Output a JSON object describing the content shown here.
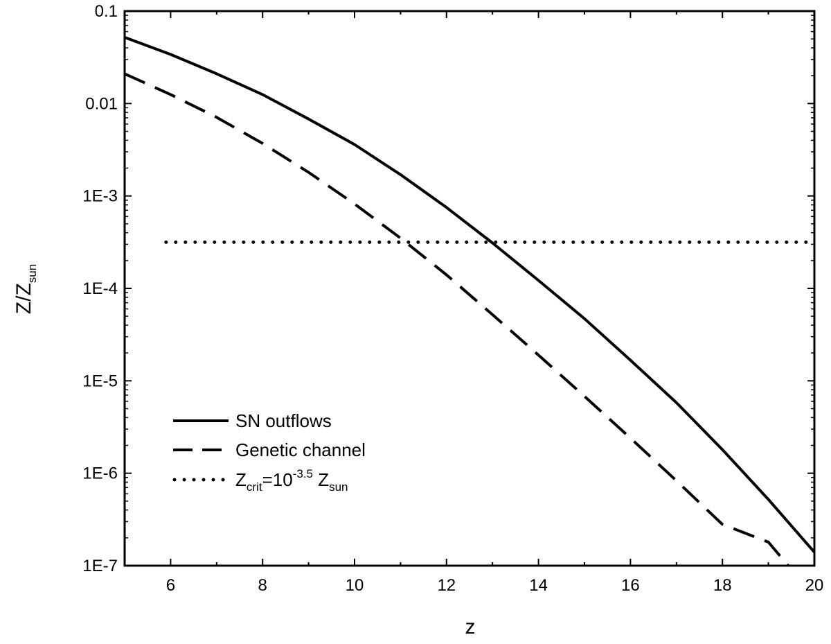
{
  "chart_data": {
    "type": "line",
    "xlabel": "z",
    "ylabel": {
      "main": "Z/Z",
      "sub": "sun"
    },
    "xlim": [
      5,
      20
    ],
    "ylim": [
      1e-07,
      0.1
    ],
    "yscale": "log",
    "grid": false,
    "legend_position": "bottom-left",
    "x_ticks": [
      {
        "value": 6,
        "label": "6"
      },
      {
        "value": 8,
        "label": "8"
      },
      {
        "value": 10,
        "label": "10"
      },
      {
        "value": 12,
        "label": "12"
      },
      {
        "value": 14,
        "label": "14"
      },
      {
        "value": 16,
        "label": "16"
      },
      {
        "value": 18,
        "label": "18"
      },
      {
        "value": 20,
        "label": "20"
      }
    ],
    "y_ticks": [
      {
        "value": 0.1,
        "label": "0.1"
      },
      {
        "value": 0.01,
        "label": "0.01"
      },
      {
        "value": 0.001,
        "label": "1E-3"
      },
      {
        "value": 0.0001,
        "label": "1E-4"
      },
      {
        "value": 1e-05,
        "label": "1E-5"
      },
      {
        "value": 1e-06,
        "label": "1E-6"
      },
      {
        "value": 1e-07,
        "label": "1E-7"
      }
    ],
    "series": [
      {
        "name": "SN outflows",
        "style": "solid",
        "x": [
          5,
          6,
          7,
          8,
          9,
          10,
          11,
          12,
          13,
          14,
          15,
          16,
          17,
          18,
          19,
          20
        ],
        "y": [
          0.052,
          0.034,
          0.021,
          0.0125,
          0.0068,
          0.0036,
          0.0017,
          0.00075,
          0.00031,
          0.000122,
          4.7e-05,
          1.67e-05,
          5.8e-06,
          1.8e-06,
          5.2e-07,
          1.4e-07
        ]
      },
      {
        "name": "Genetic channel",
        "style": "dashed",
        "x": [
          5,
          6,
          7,
          8,
          9,
          10,
          11,
          12,
          13,
          14,
          15,
          16,
          17,
          18,
          19,
          19.43
        ],
        "y": [
          0.021,
          0.0125,
          0.0071,
          0.0037,
          0.0018,
          0.00082,
          0.00035,
          0.00014,
          5.2e-05,
          1.9e-05,
          6.8e-06,
          2.4e-06,
          8.3e-07,
          2.8e-07,
          1.8e-07,
          1e-07
        ]
      },
      {
        "name": "Z_crit",
        "style": "dotted",
        "x": [
          5.9,
          20
        ],
        "y": [
          0.000316,
          0.000316
        ]
      }
    ],
    "legend": [
      {
        "style": "solid",
        "text": "SN outflows"
      },
      {
        "style": "dashed",
        "text": "Genetic channel"
      },
      {
        "style": "dotted",
        "text": "Z",
        "sub": "crit",
        "mid": "=10",
        "sup": "-3.5",
        "tail": " Z",
        "sub2": "sun"
      }
    ],
    "colors": {
      "line": "#000000",
      "background": "#ffffff"
    }
  }
}
